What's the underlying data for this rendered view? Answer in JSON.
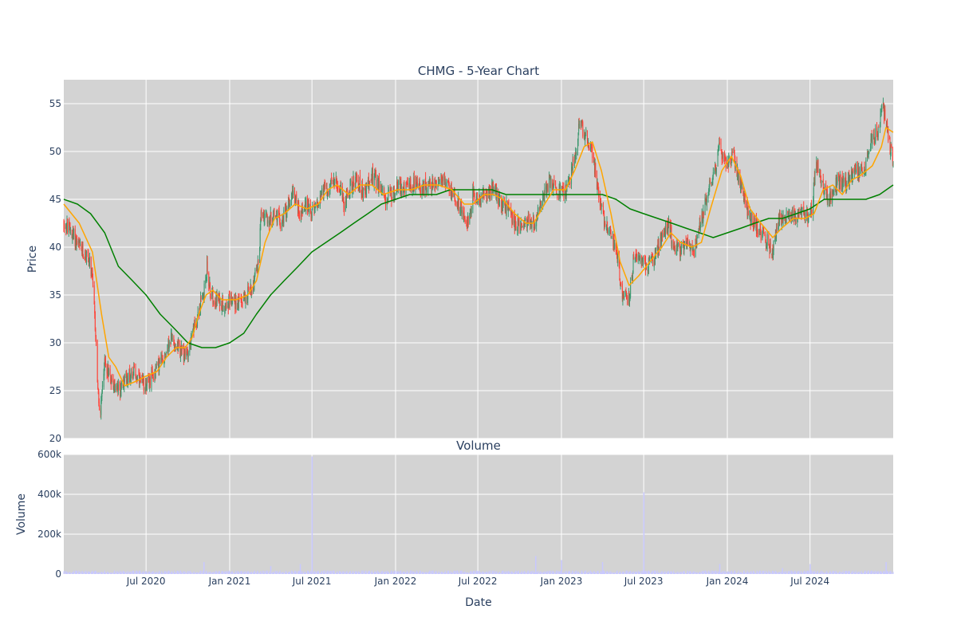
{
  "chart_data": {
    "type": "candlestick",
    "title": "CHMG - 5-Year Chart",
    "xlabel": "Date",
    "colors": {
      "background": "#d3d3d3",
      "grid": "#ffffff",
      "up": "#3d9970",
      "down": "#ff4136",
      "ma_short": "#ffa500",
      "ma_long": "#008000",
      "volume": "#c8c8ff"
    },
    "price_panel": {
      "ylabel": "Price",
      "ylim": [
        20,
        57.5
      ],
      "yticks": [
        20,
        25,
        30,
        35,
        40,
        45,
        50,
        55
      ],
      "grid": true
    },
    "volume_panel": {
      "title": "Volume",
      "ylabel": "Volume",
      "ylim": [
        0,
        600000
      ],
      "yticks": [
        {
          "v": 0,
          "label": "0"
        },
        {
          "v": 200000,
          "label": "200k"
        },
        {
          "v": 400000,
          "label": "400k"
        },
        {
          "v": 600000,
          "label": "600k"
        }
      ],
      "grid": true
    },
    "x_range": [
      "2020-01-02",
      "2024-12-31"
    ],
    "x_ticks": [
      {
        "date": "2020-07-01",
        "label": "Jul 2020"
      },
      {
        "date": "2021-01-01",
        "label": "Jan 2021"
      },
      {
        "date": "2021-07-01",
        "label": "Jul 2021"
      },
      {
        "date": "2022-01-01",
        "label": "Jan 2022"
      },
      {
        "date": "2022-07-01",
        "label": "Jul 2022"
      },
      {
        "date": "2023-01-01",
        "label": "Jan 2023"
      },
      {
        "date": "2023-07-01",
        "label": "Jul 2023"
      },
      {
        "date": "2024-01-01",
        "label": "Jan 2024"
      },
      {
        "date": "2024-07-01",
        "label": "Jul 2024"
      }
    ],
    "price_path": [
      [
        "2020-01-02",
        42.5
      ],
      [
        "2020-01-20",
        41.5
      ],
      [
        "2020-02-10",
        39.5
      ],
      [
        "2020-02-25",
        39
      ],
      [
        "2020-03-05",
        36.5
      ],
      [
        "2020-03-12",
        31
      ],
      [
        "2020-03-18",
        24
      ],
      [
        "2020-03-23",
        22.5
      ],
      [
        "2020-03-31",
        28
      ],
      [
        "2020-04-10",
        27
      ],
      [
        "2020-04-20",
        25.5
      ],
      [
        "2020-05-05",
        25
      ],
      [
        "2020-05-20",
        26.5
      ],
      [
        "2020-06-05",
        27
      ],
      [
        "2020-06-20",
        25.5
      ],
      [
        "2020-07-10",
        26
      ],
      [
        "2020-07-25",
        27.5
      ],
      [
        "2020-08-10",
        28.5
      ],
      [
        "2020-08-25",
        30.5
      ],
      [
        "2020-09-10",
        29.5
      ],
      [
        "2020-09-25",
        28.5
      ],
      [
        "2020-10-10",
        30.5
      ],
      [
        "2020-10-25",
        33.5
      ],
      [
        "2020-11-05",
        35
      ],
      [
        "2020-11-12",
        38
      ],
      [
        "2020-11-20",
        35
      ],
      [
        "2020-12-05",
        34.5
      ],
      [
        "2020-12-20",
        34
      ],
      [
        "2021-01-05",
        34.5
      ],
      [
        "2021-01-20",
        34
      ],
      [
        "2021-02-05",
        35
      ],
      [
        "2021-02-20",
        36
      ],
      [
        "2021-03-05",
        38
      ],
      [
        "2021-03-12",
        44
      ],
      [
        "2021-03-25",
        42.5
      ],
      [
        "2021-04-10",
        43.5
      ],
      [
        "2021-04-25",
        42.5
      ],
      [
        "2021-05-10",
        44.5
      ],
      [
        "2021-05-20",
        46
      ],
      [
        "2021-06-05",
        43.5
      ],
      [
        "2021-06-20",
        44.5
      ],
      [
        "2021-07-05",
        43.5
      ],
      [
        "2021-07-20",
        45.5
      ],
      [
        "2021-08-10",
        46.5
      ],
      [
        "2021-08-25",
        47
      ],
      [
        "2021-09-10",
        44.5
      ],
      [
        "2021-09-25",
        46.5
      ],
      [
        "2021-10-10",
        47
      ],
      [
        "2021-10-25",
        45.5
      ],
      [
        "2021-11-10",
        47.5
      ],
      [
        "2021-11-25",
        46.5
      ],
      [
        "2021-12-10",
        45
      ],
      [
        "2021-12-25",
        45.5
      ],
      [
        "2022-01-10",
        46.5
      ],
      [
        "2022-01-25",
        46
      ],
      [
        "2022-02-10",
        46.5
      ],
      [
        "2022-02-25",
        46
      ],
      [
        "2022-03-10",
        46.5
      ],
      [
        "2022-03-25",
        46.5
      ],
      [
        "2022-04-10",
        47
      ],
      [
        "2022-04-25",
        46.5
      ],
      [
        "2022-05-10",
        45.5
      ],
      [
        "2022-05-25",
        44
      ],
      [
        "2022-06-10",
        42.5
      ],
      [
        "2022-06-20",
        45.5
      ],
      [
        "2022-07-05",
        45
      ],
      [
        "2022-07-20",
        45.5
      ],
      [
        "2022-08-05",
        46.5
      ],
      [
        "2022-08-20",
        44.5
      ],
      [
        "2022-09-05",
        44
      ],
      [
        "2022-09-20",
        42.5
      ],
      [
        "2022-10-05",
        42
      ],
      [
        "2022-10-20",
        43
      ],
      [
        "2022-11-05",
        42.5
      ],
      [
        "2022-11-20",
        45
      ],
      [
        "2022-12-05",
        47
      ],
      [
        "2022-12-20",
        46
      ],
      [
        "2023-01-05",
        45.5
      ],
      [
        "2023-01-20",
        47
      ],
      [
        "2023-02-01",
        50
      ],
      [
        "2023-02-10",
        53
      ],
      [
        "2023-02-25",
        51.5
      ],
      [
        "2023-03-10",
        50
      ],
      [
        "2023-03-20",
        46.5
      ],
      [
        "2023-04-05",
        43
      ],
      [
        "2023-04-20",
        41.5
      ],
      [
        "2023-05-05",
        38.5
      ],
      [
        "2023-05-15",
        35
      ],
      [
        "2023-05-30",
        34.5
      ],
      [
        "2023-06-10",
        39
      ],
      [
        "2023-06-25",
        38.5
      ],
      [
        "2023-07-10",
        38
      ],
      [
        "2023-07-25",
        39
      ],
      [
        "2023-08-10",
        41
      ],
      [
        "2023-08-25",
        42.5
      ],
      [
        "2023-09-05",
        40
      ],
      [
        "2023-09-20",
        39.5
      ],
      [
        "2023-10-05",
        40.5
      ],
      [
        "2023-10-20",
        39.5
      ],
      [
        "2023-11-05",
        43
      ],
      [
        "2023-11-20",
        46
      ],
      [
        "2023-12-05",
        48
      ],
      [
        "2023-12-15",
        50.5
      ],
      [
        "2023-12-31",
        48.5
      ],
      [
        "2024-01-15",
        49.5
      ],
      [
        "2024-01-30",
        46.5
      ],
      [
        "2024-02-15",
        43.5
      ],
      [
        "2024-02-28",
        42.5
      ],
      [
        "2024-03-15",
        41.5
      ],
      [
        "2024-03-31",
        40.5
      ],
      [
        "2024-04-10",
        39.5
      ],
      [
        "2024-04-25",
        43
      ],
      [
        "2024-05-10",
        43.5
      ],
      [
        "2024-05-25",
        43
      ],
      [
        "2024-06-10",
        43.5
      ],
      [
        "2024-06-25",
        43
      ],
      [
        "2024-07-05",
        44
      ],
      [
        "2024-07-15",
        49
      ],
      [
        "2024-07-30",
        46
      ],
      [
        "2024-08-15",
        45
      ],
      [
        "2024-08-30",
        47
      ],
      [
        "2024-09-15",
        46.5
      ],
      [
        "2024-09-30",
        47.5
      ],
      [
        "2024-10-15",
        48
      ],
      [
        "2024-10-31",
        48.5
      ],
      [
        "2024-11-15",
        51.5
      ],
      [
        "2024-11-30",
        52
      ],
      [
        "2024-12-05",
        55
      ],
      [
        "2024-12-15",
        53.5
      ],
      [
        "2024-12-23",
        50.5
      ],
      [
        "2024-12-31",
        49
      ]
    ],
    "ma_short": [
      [
        "2020-01-02",
        44.5
      ],
      [
        "2020-02-05",
        42.5
      ],
      [
        "2020-03-05",
        39.5
      ],
      [
        "2020-03-25",
        33
      ],
      [
        "2020-04-10",
        28.5
      ],
      [
        "2020-04-25",
        27.5
      ],
      [
        "2020-05-15",
        25.5
      ],
      [
        "2020-06-10",
        26
      ],
      [
        "2020-06-30",
        26.5
      ],
      [
        "2020-07-25",
        27
      ],
      [
        "2020-08-15",
        28.5
      ],
      [
        "2020-09-05",
        29.5
      ],
      [
        "2020-09-25",
        29.5
      ],
      [
        "2020-10-10",
        30.5
      ],
      [
        "2020-10-25",
        33
      ],
      [
        "2020-11-10",
        35
      ],
      [
        "2020-11-25",
        35.5
      ],
      [
        "2020-12-15",
        34.5
      ],
      [
        "2021-01-15",
        34.5
      ],
      [
        "2021-02-10",
        35
      ],
      [
        "2021-03-01",
        36.5
      ],
      [
        "2021-03-20",
        40.5
      ],
      [
        "2021-04-10",
        43
      ],
      [
        "2021-05-01",
        43.5
      ],
      [
        "2021-05-25",
        44.5
      ],
      [
        "2021-06-20",
        44
      ],
      [
        "2021-07-15",
        44.5
      ],
      [
        "2021-08-05",
        46
      ],
      [
        "2021-08-25",
        46.5
      ],
      [
        "2021-09-20",
        45.5
      ],
      [
        "2021-10-15",
        46.5
      ],
      [
        "2021-11-10",
        46.5
      ],
      [
        "2021-12-05",
        45.5
      ],
      [
        "2022-01-05",
        46
      ],
      [
        "2022-02-05",
        46
      ],
      [
        "2022-03-05",
        46.5
      ],
      [
        "2022-04-05",
        46.5
      ],
      [
        "2022-05-05",
        46
      ],
      [
        "2022-06-01",
        44.5
      ],
      [
        "2022-06-20",
        44.5
      ],
      [
        "2022-07-15",
        45.5
      ],
      [
        "2022-08-05",
        45.5
      ],
      [
        "2022-08-25",
        45
      ],
      [
        "2022-09-20",
        43.5
      ],
      [
        "2022-10-15",
        42.5
      ],
      [
        "2022-11-01",
        42.5
      ],
      [
        "2022-11-25",
        44.5
      ],
      [
        "2022-12-15",
        46
      ],
      [
        "2023-01-10",
        46
      ],
      [
        "2023-01-30",
        48
      ],
      [
        "2023-02-20",
        50.5
      ],
      [
        "2023-03-10",
        51
      ],
      [
        "2023-03-30",
        48
      ],
      [
        "2023-04-20",
        43.5
      ],
      [
        "2023-05-10",
        38.5
      ],
      [
        "2023-05-30",
        36
      ],
      [
        "2023-06-20",
        37
      ],
      [
        "2023-07-15",
        38.5
      ],
      [
        "2023-08-10",
        40
      ],
      [
        "2023-08-30",
        41.5
      ],
      [
        "2023-09-20",
        40.5
      ],
      [
        "2023-10-15",
        40
      ],
      [
        "2023-11-05",
        40.5
      ],
      [
        "2023-11-25",
        44
      ],
      [
        "2023-12-20",
        48
      ],
      [
        "2024-01-10",
        49.5
      ],
      [
        "2024-01-30",
        47.5
      ],
      [
        "2024-02-20",
        44
      ],
      [
        "2024-03-15",
        42.5
      ],
      [
        "2024-04-10",
        41
      ],
      [
        "2024-04-30",
        42
      ],
      [
        "2024-05-25",
        43
      ],
      [
        "2024-06-20",
        43
      ],
      [
        "2024-07-10",
        43.5
      ],
      [
        "2024-07-30",
        46
      ],
      [
        "2024-08-20",
        46.5
      ],
      [
        "2024-09-10",
        45.5
      ],
      [
        "2024-09-30",
        47
      ],
      [
        "2024-10-20",
        47.5
      ],
      [
        "2024-11-15",
        48.5
      ],
      [
        "2024-12-05",
        50.5
      ],
      [
        "2024-12-15",
        52.5
      ],
      [
        "2024-12-31",
        52
      ]
    ],
    "ma_long": [
      [
        "2020-01-02",
        45
      ],
      [
        "2020-02-01",
        44.5
      ],
      [
        "2020-03-01",
        43.5
      ],
      [
        "2020-04-01",
        41.5
      ],
      [
        "2020-05-01",
        38
      ],
      [
        "2020-06-01",
        36.5
      ],
      [
        "2020-07-01",
        35
      ],
      [
        "2020-08-01",
        33
      ],
      [
        "2020-09-01",
        31.5
      ],
      [
        "2020-10-01",
        30
      ],
      [
        "2020-11-01",
        29.5
      ],
      [
        "2020-12-01",
        29.5
      ],
      [
        "2021-01-01",
        30
      ],
      [
        "2021-02-01",
        31
      ],
      [
        "2021-03-01",
        33
      ],
      [
        "2021-04-01",
        35
      ],
      [
        "2021-05-01",
        36.5
      ],
      [
        "2021-06-01",
        38
      ],
      [
        "2021-07-01",
        39.5
      ],
      [
        "2021-08-01",
        40.5
      ],
      [
        "2021-09-01",
        41.5
      ],
      [
        "2021-10-01",
        42.5
      ],
      [
        "2021-11-01",
        43.5
      ],
      [
        "2021-12-01",
        44.5
      ],
      [
        "2022-01-01",
        45
      ],
      [
        "2022-02-01",
        45.5
      ],
      [
        "2022-03-01",
        45.5
      ],
      [
        "2022-04-01",
        45.5
      ],
      [
        "2022-05-01",
        46
      ],
      [
        "2022-06-01",
        46
      ],
      [
        "2022-07-01",
        46
      ],
      [
        "2022-08-01",
        46
      ],
      [
        "2022-09-01",
        45.5
      ],
      [
        "2022-10-01",
        45.5
      ],
      [
        "2022-11-01",
        45.5
      ],
      [
        "2022-12-01",
        45.5
      ],
      [
        "2023-01-01",
        45.5
      ],
      [
        "2023-02-01",
        45.5
      ],
      [
        "2023-03-01",
        45.5
      ],
      [
        "2023-04-01",
        45.5
      ],
      [
        "2023-05-01",
        45
      ],
      [
        "2023-06-01",
        44
      ],
      [
        "2023-07-01",
        43.5
      ],
      [
        "2023-08-01",
        43
      ],
      [
        "2023-09-01",
        42.5
      ],
      [
        "2023-10-01",
        42
      ],
      [
        "2023-11-01",
        41.5
      ],
      [
        "2023-12-01",
        41
      ],
      [
        "2024-01-01",
        41.5
      ],
      [
        "2024-02-01",
        42
      ],
      [
        "2024-03-01",
        42.5
      ],
      [
        "2024-04-01",
        43
      ],
      [
        "2024-05-01",
        43
      ],
      [
        "2024-06-01",
        43.5
      ],
      [
        "2024-07-01",
        44
      ],
      [
        "2024-08-01",
        45
      ],
      [
        "2024-09-01",
        45
      ],
      [
        "2024-10-01",
        45
      ],
      [
        "2024-11-01",
        45
      ],
      [
        "2024-12-01",
        45.5
      ],
      [
        "2024-12-31",
        46.5
      ]
    ],
    "volume_base": 10000,
    "volume_spikes": [
      [
        "2020-11-05",
        60000
      ],
      [
        "2021-04-01",
        40000
      ],
      [
        "2021-06-05",
        50000
      ],
      [
        "2021-07-01",
        590000
      ],
      [
        "2022-11-05",
        90000
      ],
      [
        "2023-01-01",
        70000
      ],
      [
        "2023-04-01",
        60000
      ],
      [
        "2023-07-01",
        410000
      ],
      [
        "2023-12-15",
        50000
      ],
      [
        "2024-05-01",
        30000
      ],
      [
        "2024-07-01",
        50000
      ],
      [
        "2024-12-15",
        60000
      ]
    ]
  }
}
